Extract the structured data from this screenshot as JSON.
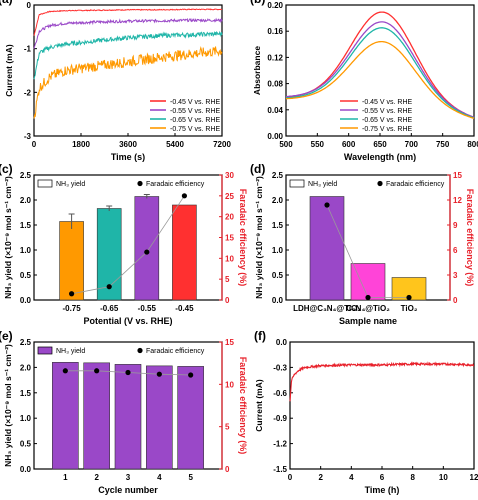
{
  "colors": {
    "orange": "#ff9900",
    "teal": "#1fb5a8",
    "purple": "#9a48c8",
    "red": "#ff3030",
    "pink": "#ff44d8",
    "gold": "#ffc51c",
    "line_red": "#e8202a",
    "axis_red": "#e8202a",
    "fe_line": "#9a9a9a"
  },
  "chart_data": [
    {
      "panel": "(a)",
      "type": "line",
      "xlabel": "Time (s)",
      "ylabel": "Current (mA)",
      "xlim": [
        0,
        7200
      ],
      "ylim": [
        -3,
        0
      ],
      "xticks": [
        "0",
        "1800",
        "3600",
        "5400",
        "7200"
      ],
      "yticks": [
        "0",
        "-1",
        "-2",
        "-3"
      ],
      "legend_position": "bottom-right",
      "series": [
        {
          "name": "-0.45 V vs. RHE",
          "color": "red",
          "x": [
            0,
            200,
            600,
            1200,
            2400,
            3600,
            4800,
            6000,
            7200
          ],
          "y": [
            -0.7,
            -0.22,
            -0.15,
            -0.13,
            -0.12,
            -0.11,
            -0.11,
            -0.1,
            -0.1
          ]
        },
        {
          "name": "-0.55 V vs. RHE",
          "color": "purple",
          "x": [
            0,
            200,
            600,
            1200,
            2400,
            3600,
            4800,
            6000,
            7200
          ],
          "y": [
            -1.0,
            -0.6,
            -0.47,
            -0.42,
            -0.39,
            -0.37,
            -0.36,
            -0.35,
            -0.35
          ]
        },
        {
          "name": "-0.65 V vs. RHE",
          "color": "teal",
          "x": [
            0,
            200,
            600,
            1200,
            2400,
            3600,
            4800,
            6000,
            7200
          ],
          "y": [
            -1.7,
            -1.1,
            -0.97,
            -0.9,
            -0.82,
            -0.75,
            -0.7,
            -0.68,
            -0.66
          ]
        },
        {
          "name": "-0.75 V vs. RHE",
          "color": "orange",
          "x": [
            0,
            200,
            600,
            1200,
            2400,
            3600,
            4800,
            6000,
            7200
          ],
          "y": [
            -2.6,
            -1.9,
            -1.65,
            -1.5,
            -1.4,
            -1.3,
            -1.2,
            -1.12,
            -1.05
          ]
        }
      ]
    },
    {
      "panel": "(b)",
      "type": "line",
      "xlabel": "Wavelength (nm)",
      "ylabel": "Absorbance",
      "xlim": [
        500,
        800
      ],
      "ylim": [
        0,
        0.2
      ],
      "xticks": [
        "500",
        "550",
        "600",
        "650",
        "700",
        "750",
        "800"
      ],
      "yticks": [
        "0.00",
        "0.04",
        "0.08",
        "0.12",
        "0.16",
        "0.20"
      ],
      "legend_position": "bottom-center",
      "peak_x": 655,
      "series": [
        {
          "name": "-0.45 V vs. RHE",
          "color": "red",
          "base": 0.058,
          "peak": 0.186
        },
        {
          "name": "-0.55 V vs. RHE",
          "color": "purple",
          "base": 0.059,
          "peak": 0.171
        },
        {
          "name": "-0.65 V vs. RHE",
          "color": "teal",
          "base": 0.057,
          "peak": 0.162
        },
        {
          "name": "-0.75 V vs. RHE",
          "color": "orange",
          "base": 0.056,
          "peak": 0.141
        }
      ]
    },
    {
      "panel": "(c)",
      "type": "bar",
      "xlabel": "Potential (V vs. RHE)",
      "ylabel": "NH₃ yield (×10⁻⁹ mol s⁻¹ cm⁻²)",
      "y2label": "Faradaic efficiency (%)",
      "categories": [
        "-0.75",
        "-0.65",
        "-0.55",
        "-0.45"
      ],
      "ylim": [
        0,
        2.5
      ],
      "y2lim": [
        0,
        30
      ],
      "yticks": [
        "0.0",
        "0.5",
        "1.0",
        "1.5",
        "2.0",
        "2.5"
      ],
      "y2ticks": [
        "0",
        "5",
        "10",
        "15",
        "20",
        "25",
        "30"
      ],
      "legend": [
        "NH₃ yield",
        "Faradaic efficiency"
      ],
      "series": [
        {
          "name": "NH₃ yield",
          "values": [
            1.57,
            1.83,
            2.07,
            1.9
          ],
          "errors": [
            0.15,
            0.05,
            0.04,
            0.0
          ],
          "colors": [
            "orange",
            "teal",
            "purple",
            "red"
          ]
        },
        {
          "name": "Faradaic efficiency",
          "values": [
            1.5,
            3.2,
            11.5,
            25.0
          ]
        }
      ]
    },
    {
      "panel": "(d)",
      "type": "bar",
      "xlabel": "Sample name",
      "ylabel": "NH₃ yield (×10⁻⁹ mol s⁻¹ cm⁻²)",
      "y2label": "Faradaic efficiency (%)",
      "categories": [
        "LDH@C₃N₄@TiO₂",
        "C₃N₄@TiO₂",
        "TiO₂"
      ],
      "ylim": [
        0,
        2.5
      ],
      "y2lim": [
        0,
        15
      ],
      "yticks": [
        "0.0",
        "0.5",
        "1.0",
        "1.5",
        "2.0",
        "2.5"
      ],
      "y2ticks": [
        "0",
        "3",
        "6",
        "9",
        "12",
        "15"
      ],
      "legend": [
        "NH₃ yield",
        "Faradaic efficiency"
      ],
      "series": [
        {
          "name": "NH₃ yield",
          "values": [
            2.07,
            0.73,
            0.45
          ],
          "colors": [
            "purple",
            "pink",
            "gold"
          ]
        },
        {
          "name": "Faradaic efficiency",
          "values": [
            11.4,
            0.3,
            0.3
          ]
        }
      ]
    },
    {
      "panel": "(e)",
      "type": "bar",
      "xlabel": "Cycle number",
      "ylabel": "NH₃ yield (×10⁻⁹ mol s⁻¹ cm⁻²)",
      "y2label": "Faradaic efficiency (%)",
      "categories": [
        "1",
        "2",
        "3",
        "4",
        "5"
      ],
      "ylim": [
        0,
        2.5
      ],
      "y2lim": [
        0,
        15
      ],
      "yticks": [
        "0.0",
        "0.5",
        "1.0",
        "1.5",
        "2.0",
        "2.5"
      ],
      "y2ticks": [
        "0",
        "5",
        "10",
        "15"
      ],
      "legend": [
        "NH₃ yield",
        "Faradaic efficiency"
      ],
      "series": [
        {
          "name": "NH₃ yield",
          "values": [
            2.1,
            2.09,
            2.06,
            2.03,
            2.02
          ],
          "colors": [
            "purple",
            "purple",
            "purple",
            "purple",
            "purple"
          ]
        },
        {
          "name": "Faradaic efficiency",
          "values": [
            11.6,
            11.6,
            11.4,
            11.2,
            11.1
          ]
        }
      ]
    },
    {
      "panel": "(f)",
      "type": "line",
      "xlabel": "Time (h)",
      "ylabel": "Current (mA)",
      "xlim": [
        0,
        12
      ],
      "ylim": [
        -1.5,
        0
      ],
      "xticks": [
        "0",
        "2",
        "4",
        "6",
        "8",
        "10",
        "12"
      ],
      "yticks": [
        "0.0",
        "-0.3",
        "-0.6",
        "-0.9",
        "-1.2",
        "-1.5"
      ],
      "series": [
        {
          "color": "line_red",
          "x": [
            0,
            0.1,
            0.3,
            0.6,
            1,
            2,
            4,
            6,
            8,
            10,
            12
          ],
          "y": [
            -0.7,
            -0.45,
            -0.38,
            -0.33,
            -0.3,
            -0.28,
            -0.27,
            -0.27,
            -0.26,
            -0.26,
            -0.27
          ]
        }
      ]
    }
  ]
}
